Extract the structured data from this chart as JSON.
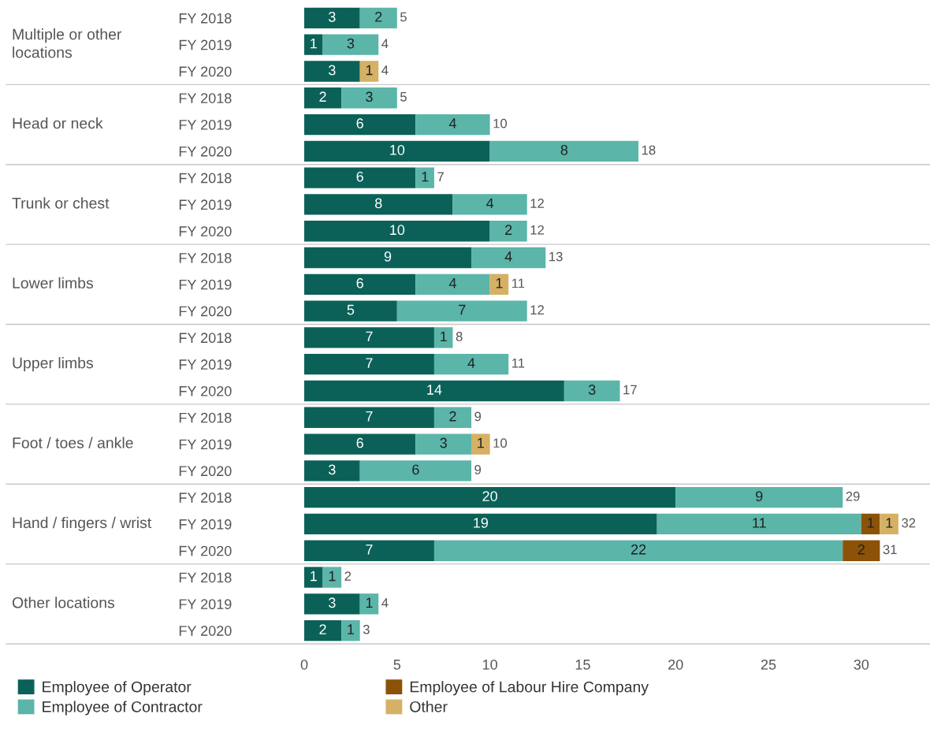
{
  "chart_data": {
    "type": "bar",
    "orientation": "horizontal",
    "stacked": true,
    "categories": [
      "FY 2018",
      "FY 2019",
      "FY 2020",
      "FY 2018",
      "FY 2019",
      "FY 2020",
      "FY 2018",
      "FY 2019",
      "FY 2020",
      "FY 2018",
      "FY 2019",
      "FY 2020",
      "FY 2018",
      "FY 2019",
      "FY 2020",
      "FY 2018",
      "FY 2019",
      "FY 2020",
      "FY 2018",
      "FY 2019",
      "FY 2020",
      "FY 2018",
      "FY 2019",
      "FY 2020"
    ],
    "annotations": [
      "Multiple or other\nlocations",
      "Head or neck",
      "Trunk or chest",
      "Lower limbs",
      "Upper limbs",
      "Foot / toes / ankle",
      "Hand / fingers / wrist",
      "Other locations"
    ],
    "series": [
      {
        "name": "Employee of Operator",
        "color": "#0b6158",
        "values": [
          3,
          1,
          3,
          2,
          6,
          10,
          6,
          8,
          10,
          9,
          6,
          5,
          7,
          7,
          14,
          7,
          6,
          3,
          20,
          19,
          7,
          1,
          3,
          2
        ]
      },
      {
        "name": "Employee of Contractor",
        "color": "#5bb5a9",
        "values": [
          2,
          3,
          null,
          3,
          4,
          8,
          1,
          4,
          2,
          4,
          4,
          7,
          1,
          4,
          3,
          2,
          3,
          6,
          9,
          11,
          22,
          1,
          1,
          1
        ]
      },
      {
        "name": "Employee of Labour Hire Company",
        "color": "#8b5208",
        "values": [
          null,
          null,
          null,
          null,
          null,
          null,
          null,
          null,
          null,
          null,
          null,
          null,
          null,
          null,
          null,
          null,
          null,
          null,
          null,
          1,
          2,
          null,
          null,
          null
        ]
      },
      {
        "name": "Other",
        "color": "#d6b064",
        "values": [
          null,
          null,
          1,
          null,
          null,
          null,
          null,
          null,
          null,
          null,
          1,
          null,
          null,
          null,
          null,
          null,
          1,
          null,
          null,
          1,
          null,
          null,
          null,
          null
        ]
      }
    ],
    "totals": [
      "5",
      "4",
      "4",
      "5",
      "10",
      "18",
      "7",
      "12",
      "12",
      "13",
      "11",
      "12",
      "8",
      "11",
      "17",
      "9",
      "10",
      "9",
      "29",
      "32",
      "31",
      "2",
      "4",
      "3"
    ],
    "data_labels": true,
    "xlim": [
      0,
      33.6
    ],
    "xticks": [
      0,
      5,
      10,
      15,
      20,
      25,
      30
    ],
    "grid": false,
    "legend": "bottom"
  }
}
